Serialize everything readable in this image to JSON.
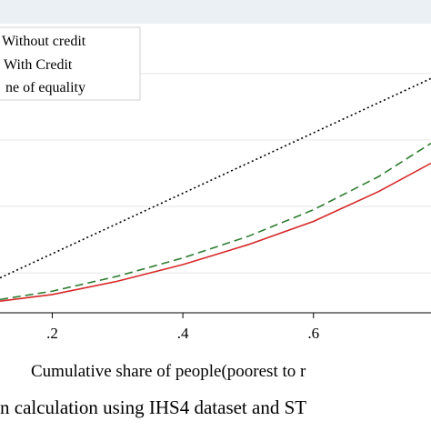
{
  "chart_data": {
    "type": "line",
    "xlabel": "Cumulative share of people(poorest to r",
    "caption": "n calculation using IHS4 dataset and ST",
    "xlim": [
      0.12,
      0.78
    ],
    "ylim": [
      0.08,
      0.95
    ],
    "grid": true,
    "legend_position": "top-left",
    "x_ticks": [
      {
        "value": 0.2,
        "label": ".2"
      },
      {
        "value": 0.4,
        "label": ".4"
      },
      {
        "value": 0.6,
        "label": ".6"
      }
    ],
    "y_gridlines": [
      0.2,
      0.4,
      0.6,
      0.8
    ],
    "series": [
      {
        "name": "Without credit",
        "style": "solid",
        "color": "#d62728",
        "x": [
          0.12,
          0.2,
          0.3,
          0.4,
          0.5,
          0.6,
          0.7,
          0.78
        ],
        "y": [
          0.115,
          0.135,
          0.175,
          0.225,
          0.285,
          0.355,
          0.445,
          0.53
        ]
      },
      {
        "name": "With Credit",
        "style": "dashed",
        "color": "#2e7d32",
        "x": [
          0.12,
          0.2,
          0.3,
          0.4,
          0.5,
          0.6,
          0.7,
          0.78
        ],
        "y": [
          0.12,
          0.145,
          0.19,
          0.245,
          0.31,
          0.39,
          0.49,
          0.59
        ]
      },
      {
        "name": "ne of equality",
        "style": "dotted",
        "color": "#000000",
        "x": [
          0.12,
          0.78
        ],
        "y": [
          0.185,
          0.785
        ]
      }
    ]
  }
}
